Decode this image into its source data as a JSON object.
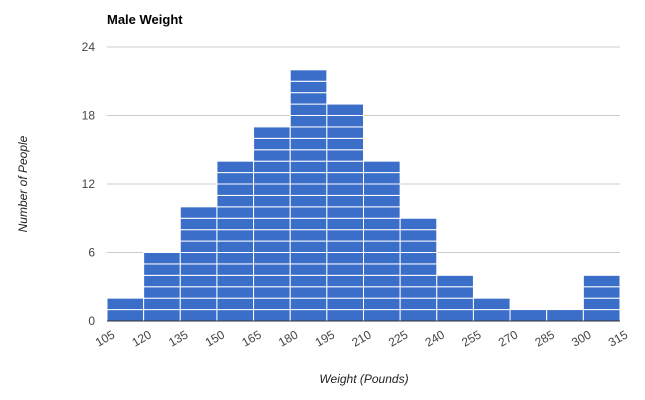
{
  "chart_data": {
    "type": "bar",
    "title": "Male Weight",
    "xlabel": "Weight (Pounds)",
    "ylabel": "Number of People",
    "bin_edges": [
      105,
      120,
      135,
      150,
      165,
      180,
      195,
      210,
      225,
      240,
      255,
      270,
      285,
      300,
      315
    ],
    "values": [
      2,
      6,
      10,
      14,
      17,
      22,
      19,
      14,
      9,
      4,
      2,
      1,
      1,
      4
    ],
    "ylim": [
      0,
      24
    ],
    "yticks": [
      0,
      6,
      12,
      18,
      24
    ],
    "grid": true,
    "colors": {
      "bar": "#3a6ec8",
      "segment_line": "#ffffff",
      "grid": "#cccccc",
      "axis": "#333333"
    }
  }
}
